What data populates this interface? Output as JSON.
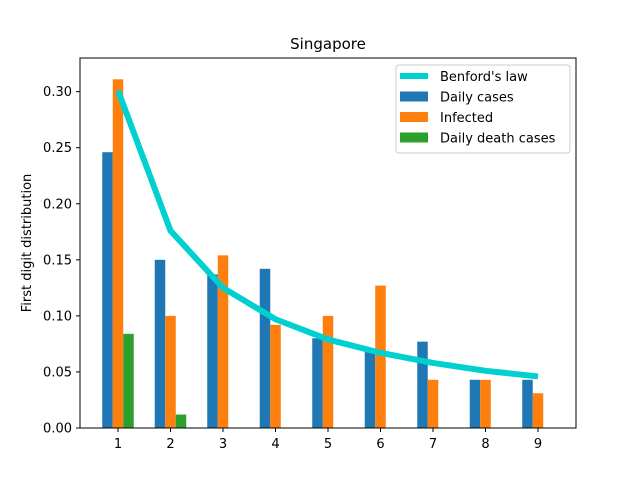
{
  "chart_data": {
    "type": "bar",
    "title": "Singapore",
    "xlabel": "",
    "ylabel": "First digit distribution",
    "categories": [
      "1",
      "2",
      "3",
      "4",
      "5",
      "6",
      "7",
      "8",
      "9"
    ],
    "ylim": [
      0,
      0.33
    ],
    "yticks": [
      "0.00",
      "0.05",
      "0.10",
      "0.15",
      "0.20",
      "0.25",
      "0.30"
    ],
    "grid": false,
    "legend_position": "top-right",
    "line_series": {
      "name": "Benford's law",
      "color": "#00d0d0",
      "values": [
        0.301,
        0.176,
        0.125,
        0.097,
        0.079,
        0.067,
        0.058,
        0.051,
        0.046
      ]
    },
    "series": [
      {
        "name": "Daily cases",
        "color": "#1f77b4",
        "values": [
          0.246,
          0.15,
          0.137,
          0.142,
          0.08,
          0.071,
          0.077,
          0.043,
          0.043
        ]
      },
      {
        "name": "Infected",
        "color": "#ff7f0e",
        "values": [
          0.311,
          0.1,
          0.154,
          0.092,
          0.1,
          0.127,
          0.043,
          0.043,
          0.031
        ]
      },
      {
        "name": "Daily death cases",
        "color": "#2ca02c",
        "values": [
          0.084,
          0.012,
          0,
          0,
          0,
          0,
          0,
          0,
          0
        ]
      }
    ]
  }
}
